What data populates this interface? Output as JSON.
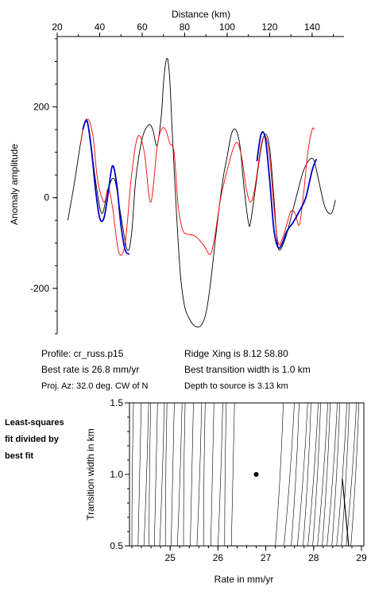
{
  "top_chart": {
    "type": "line",
    "xlabel": "Distance (km)",
    "ylabel": "Anomaly amplitude",
    "xlim": [
      20,
      155
    ],
    "ylim": [
      -300,
      355
    ],
    "xticks": [
      20,
      40,
      60,
      80,
      100,
      120,
      140
    ],
    "yticks": [
      -200,
      0,
      200
    ],
    "series": [
      {
        "key": "observed",
        "color": "#000000",
        "x": [
          25,
          28,
          31,
          33,
          35,
          38,
          41,
          44,
          47,
          50,
          53,
          55,
          57,
          60,
          63,
          65,
          67,
          69,
          70,
          71,
          72,
          73,
          74,
          76,
          78,
          80,
          82,
          84,
          86,
          88,
          90,
          92,
          95,
          98,
          100,
          102,
          104,
          106,
          108,
          110,
          111,
          113,
          116,
          118,
          120,
          122,
          124,
          127,
          130,
          133,
          136,
          139,
          141,
          143,
          146,
          149,
          151
        ],
        "y": [
          -50,
          30,
          120,
          165,
          150,
          40,
          -35,
          20,
          40,
          -40,
          -115,
          -80,
          40,
          130,
          160,
          150,
          115,
          180,
          250,
          295,
          305,
          260,
          160,
          -20,
          -170,
          -240,
          -265,
          -280,
          -285,
          -280,
          -255,
          -195,
          -70,
          40,
          90,
          140,
          150,
          115,
          20,
          -55,
          -55,
          10,
          110,
          140,
          110,
          0,
          -110,
          -95,
          -45,
          10,
          60,
          85,
          80,
          40,
          -20,
          -35,
          -5
        ]
      },
      {
        "key": "synthetic",
        "color": "#ff0000",
        "x": [
          31,
          33,
          35,
          37,
          39,
          42,
          44,
          46,
          49,
          52,
          55,
          58,
          61,
          64,
          67,
          69,
          71,
          73,
          75,
          77,
          79,
          81,
          85,
          89,
          92,
          94,
          97,
          100,
          103,
          105,
          107,
          109,
          111,
          113,
          116,
          118,
          120,
          122,
          124,
          126,
          128,
          130,
          132,
          134,
          136,
          138,
          140,
          141
        ],
        "y": [
          120,
          165,
          170,
          130,
          40,
          -10,
          20,
          -20,
          -120,
          -100,
          50,
          135,
          100,
          -10,
          110,
          150,
          150,
          120,
          100,
          -20,
          -70,
          -80,
          -85,
          -105,
          -125,
          -90,
          0,
          60,
          110,
          120,
          85,
          20,
          -10,
          20,
          115,
          135,
          90,
          -20,
          -100,
          -90,
          -60,
          -30,
          -35,
          -60,
          10,
          100,
          150,
          150
        ]
      },
      {
        "key": "fit-1",
        "color": "#0000cc",
        "x": [
          32,
          34,
          36,
          38,
          40,
          42,
          44,
          46,
          48,
          50,
          52,
          54
        ],
        "y": [
          150,
          170,
          110,
          20,
          -45,
          -45,
          10,
          70,
          30,
          -60,
          -115,
          -125
        ]
      },
      {
        "key": "fit-2",
        "color": "#0000cc",
        "x": [
          114,
          116,
          118,
          120,
          122,
          124,
          126,
          128,
          131,
          134,
          137,
          140,
          142
        ],
        "y": [
          80,
          140,
          130,
          40,
          -70,
          -110,
          -100,
          -75,
          -55,
          -30,
          0,
          60,
          85
        ]
      }
    ]
  },
  "info": {
    "profile": "Profile: cr_russ.p15",
    "ridge": "Ridge Xing is 8.12 58.80",
    "best_rate": "Best rate is 26.8 mm/yr",
    "best_width": "Best transition width is 1.0 km",
    "proj_az": "Proj. Az: 32.0 deg. CW of N",
    "depth": "Depth to source is   3.13 km"
  },
  "contour_chart": {
    "type": "contour",
    "legend_text": [
      "Least-squares",
      "fit divided by",
      "best fit"
    ],
    "xlabel": "Rate in mm/yr",
    "ylabel": "Transition width in km",
    "xlim": [
      24.15,
      29.05
    ],
    "ylim": [
      0.5,
      1.5
    ],
    "xticks": [
      25,
      26,
      27,
      28,
      29
    ],
    "yticks": [
      0.5,
      1.0,
      1.5
    ],
    "best_fit": {
      "rate": 26.8,
      "width": 1.0
    },
    "left_contours": [
      24.2,
      24.33,
      24.45,
      24.56,
      24.67,
      24.78,
      24.9,
      25.02,
      25.15,
      25.28,
      25.42,
      25.56,
      25.7,
      25.85,
      26.0,
      26.14,
      26.28
    ],
    "right_contours": [
      27.2,
      27.38,
      27.53,
      27.66,
      27.78,
      27.88,
      27.98,
      28.08,
      28.18,
      28.28,
      28.38,
      28.48,
      28.58,
      28.68,
      28.78
    ],
    "contour_tilt": 0.45
  }
}
